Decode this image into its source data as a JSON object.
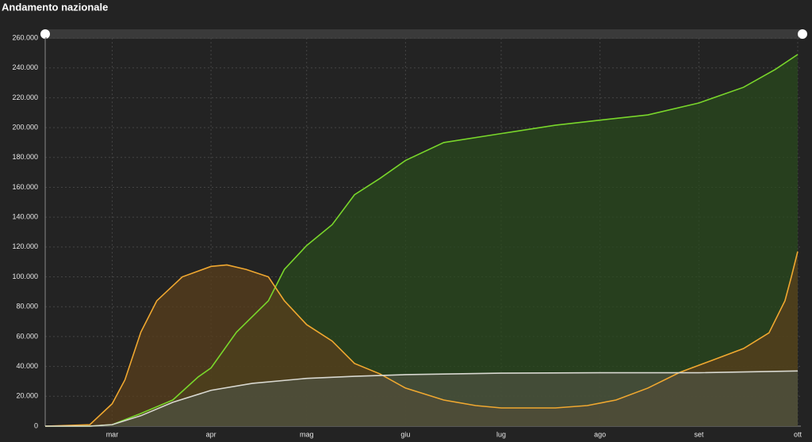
{
  "chart_data": {
    "type": "area",
    "title": "Andamento nazionale",
    "xlim": [
      0,
      237
    ],
    "xticks": [
      {
        "value": 21,
        "label": "mar"
      },
      {
        "value": 52,
        "label": "apr"
      },
      {
        "value": 82,
        "label": "mag"
      },
      {
        "value": 113,
        "label": "giu"
      },
      {
        "value": 143,
        "label": "lug"
      },
      {
        "value": 174,
        "label": "ago"
      },
      {
        "value": 205,
        "label": "set"
      },
      {
        "value": 236,
        "label": "ott"
      }
    ],
    "ylim": [
      0,
      260000
    ],
    "yticks": [
      0,
      {
        "value": 20000,
        "label": "20.000"
      },
      {
        "value": 40000,
        "label": "40.000"
      },
      {
        "value": 60000,
        "label": "60.000"
      },
      {
        "value": 80000,
        "label": "80.000"
      },
      {
        "value": 100000,
        "label": "100.000"
      },
      {
        "value": 120000,
        "label": "120.000"
      },
      {
        "value": 140000,
        "label": "140.000"
      },
      {
        "value": 160000,
        "label": "160.000"
      },
      {
        "value": 180000,
        "label": "180.000"
      },
      {
        "value": 200000,
        "label": "200.000"
      },
      {
        "value": 220000,
        "label": "220.000"
      },
      {
        "value": 240000,
        "label": "240.000"
      },
      {
        "value": 260000,
        "label": "260.000"
      }
    ],
    "grid": true,
    "series": [
      {
        "color": "#79d62b",
        "fill": "#2a4a1e",
        "x": [
          0,
          14,
          21,
          30,
          40,
          48,
          52,
          60,
          70,
          75,
          82,
          90,
          97,
          105,
          113,
          125,
          143,
          160,
          174,
          189,
          205,
          219,
          229,
          236
        ],
        "values": [
          0,
          0,
          1000,
          8500,
          17500,
          33000,
          39000,
          63000,
          84000,
          105000,
          121000,
          135000,
          155000,
          166000,
          178000,
          190000,
          196000,
          201600,
          205000,
          208500,
          216500,
          227000,
          239000,
          249000
        ]
      },
      {
        "color": "#f0a830",
        "fill": "#5a3f1c",
        "x": [
          0,
          14,
          21,
          25,
          30,
          35,
          43,
          52,
          57,
          63,
          70,
          75,
          82,
          90,
          97,
          105,
          113,
          125,
          135,
          143,
          160,
          170,
          179,
          189,
          199,
          209,
          219,
          227,
          232,
          234,
          236
        ],
        "values": [
          0,
          1000,
          15000,
          31000,
          63000,
          84000,
          100000,
          107000,
          108000,
          105000,
          100000,
          84000,
          68000,
          57000,
          42000,
          35000,
          25500,
          17500,
          13800,
          12200,
          12200,
          13800,
          17500,
          25500,
          36000,
          44000,
          52000,
          62500,
          84000,
          100000,
          117000
        ]
      },
      {
        "color": "#d8d8d0",
        "fill": "#4e5240",
        "x": [
          0,
          14,
          21,
          30,
          40,
          52,
          65,
          82,
          97,
          113,
          143,
          174,
          205,
          236
        ],
        "values": [
          0,
          0,
          1000,
          7000,
          16000,
          24000,
          28700,
          32000,
          33400,
          34500,
          35500,
          35800,
          35800,
          37000
        ]
      }
    ]
  }
}
